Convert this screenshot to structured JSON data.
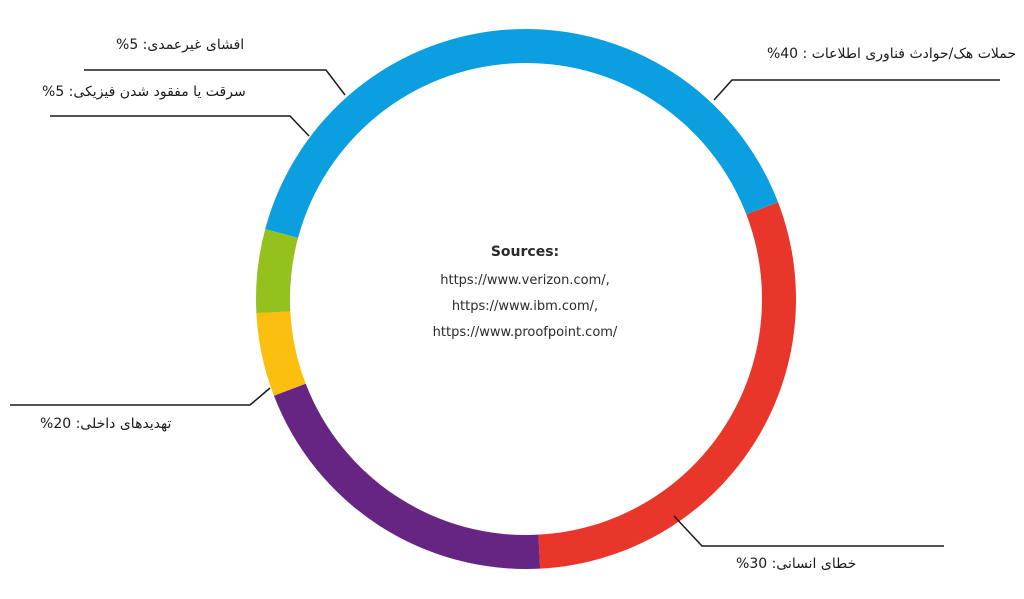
{
  "chart_data": {
    "type": "pie",
    "slices": [
      {
        "label": "حملات هک/حوادث فناوری اطلاعات : 40%",
        "value": 40,
        "color": "#0b9fe0"
      },
      {
        "label": "خطای انسانی: 30%",
        "value": 30,
        "color": "#e8372a"
      },
      {
        "label": "تهدیدهای داخلی: 20%",
        "value": 20,
        "color": "#662483"
      },
      {
        "label": "سرقت یا مفقود شدن فیزیکی: 5%",
        "value": 5,
        "color": "#fbbf10"
      },
      {
        "label": "افشای غیرعمدی: 5%",
        "value": 5,
        "color": "#95c11f"
      }
    ]
  },
  "center": {
    "title": "Sources:",
    "lines": [
      "https://www.verizon.com/,",
      "https://www.ibm.com/,",
      "https://www.proofpoint.com/"
    ]
  },
  "labels": {
    "hack": "حملات هک/حوادث فناوری اطلاعات : 40%",
    "human": "خطای انسانی: 30%",
    "insider": "تهدیدهای داخلی: 20%",
    "theft": "سرقت یا مفقود شدن فیزیکی: 5%",
    "disclosure": "افشای غیرعمدی: 5%"
  }
}
